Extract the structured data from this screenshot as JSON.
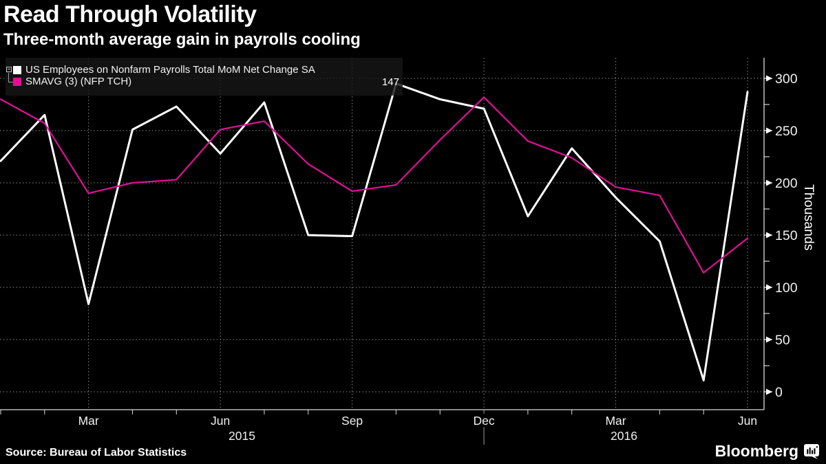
{
  "header": {
    "title": "Read Through Volatility",
    "subtitle": "Three-month average gain in payrolls cooling"
  },
  "legend": {
    "series": [
      {
        "label": "US Employees on Nonfarm Payrolls Total MoM Net Change SA",
        "color": "#ffffff",
        "last_value": ""
      },
      {
        "label": "SMAVG (3) (NFP TCH)",
        "color": "#e10f96",
        "last_value": "147"
      }
    ]
  },
  "chart_data": {
    "type": "line",
    "title": "Read Through Volatility",
    "subtitle": "Three-month average gain in payrolls cooling",
    "x": [
      "Jan 2015",
      "Feb 2015",
      "Mar 2015",
      "Apr 2015",
      "May 2015",
      "Jun 2015",
      "Jul 2015",
      "Aug 2015",
      "Sep 2015",
      "Oct 2015",
      "Nov 2015",
      "Dec 2015",
      "Jan 2016",
      "Feb 2016",
      "Mar 2016",
      "Apr 2016",
      "May 2016",
      "Jun 2016"
    ],
    "series": [
      {
        "name": "US Employees on Nonfarm Payrolls Total MoM Net Change SA",
        "color": "#ffffff",
        "values": [
          221,
          265,
          84,
          251,
          273,
          228,
          277,
          150,
          149,
          295,
          280,
          271,
          168,
          233,
          186,
          144,
          11,
          287
        ]
      },
      {
        "name": "SMAVG (3) (NFP TCH)",
        "color": "#e10f96",
        "values": [
          280,
          257,
          190,
          200,
          203,
          251,
          259,
          218,
          192,
          198,
          241,
          282,
          240,
          224,
          196,
          188,
          114,
          147
        ]
      }
    ],
    "ylabel": "Thousands",
    "ylim": [
      0,
      300
    ],
    "grid": true,
    "legend_position": "top-left",
    "y_axis": {
      "side": "right",
      "ticks_major": [
        0,
        50,
        100,
        150,
        200,
        250,
        300
      ],
      "ticks_minor": [
        25,
        75,
        125,
        175,
        225,
        275
      ]
    },
    "x_axis": {
      "labeled_ticks": [
        {
          "index": 2,
          "label": "Mar"
        },
        {
          "index": 5,
          "label": "Jun"
        },
        {
          "index": 8,
          "label": "Sep"
        },
        {
          "index": 11,
          "label": "Dec"
        },
        {
          "index": 14,
          "label": "Mar"
        },
        {
          "index": 17,
          "label": "Jun"
        }
      ],
      "year_divider_index": 11,
      "year_labels": [
        "2015",
        "2016"
      ]
    },
    "annotations": [
      {
        "text": "147",
        "meaning": "latest value of SMAVG (3) series"
      }
    ]
  },
  "footer": {
    "source": "Source: Bureau of Labor Statistics",
    "brand": "Bloomberg"
  }
}
